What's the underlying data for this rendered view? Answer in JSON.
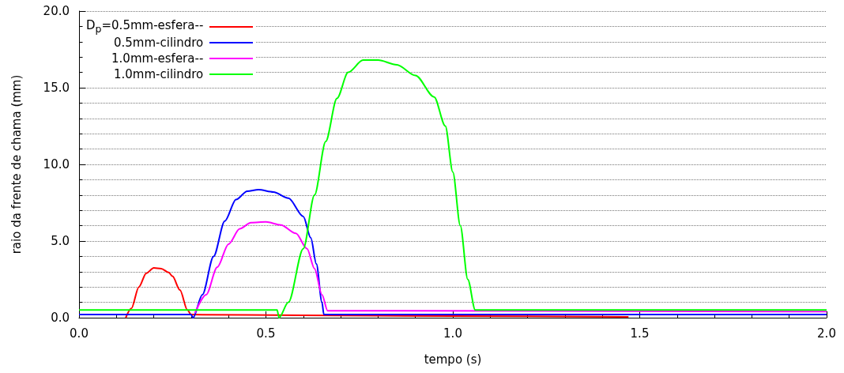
{
  "chart_data": {
    "type": "line",
    "xlabel": "tempo (s)",
    "ylabel": "raio da frente de chama (mm)",
    "xlim": [
      0,
      2
    ],
    "ylim": [
      0,
      20
    ],
    "xticks": [
      {
        "value": 0,
        "label": "0.0"
      },
      {
        "value": 0.5,
        "label": "0.5"
      },
      {
        "value": 1,
        "label": "1.0"
      },
      {
        "value": 1.5,
        "label": "1.5"
      },
      {
        "value": 2,
        "label": "2.0"
      }
    ],
    "yticks": [
      {
        "value": 0,
        "label": "0.0"
      },
      {
        "value": 5,
        "label": "5.0"
      },
      {
        "value": 10,
        "label": "10.0"
      },
      {
        "value": 15,
        "label": "15.0"
      },
      {
        "value": 20,
        "label": "20.0"
      }
    ],
    "grid": "y",
    "legend": "top left",
    "marker": "none",
    "line_style": "solid",
    "series": [
      {
        "name": "D$_{p}$=0.5mm-esfera--",
        "color": "#ff0000",
        "x": [
          0.125,
          0.14,
          0.16,
          0.18,
          0.2,
          0.22,
          0.24,
          0.25,
          0.27,
          0.29,
          0.3,
          0.6,
          1.0,
          1.47
        ],
        "values": [
          0.0,
          0.6,
          2.0,
          2.9,
          3.25,
          3.2,
          2.95,
          2.7,
          1.8,
          0.5,
          0.2,
          0.15,
          0.1,
          0.05
        ]
      },
      {
        "name": "0.5mm-cilindro",
        "color": "#0000ff",
        "x": [
          0,
          0.3,
          0.305,
          0.33,
          0.36,
          0.39,
          0.42,
          0.45,
          0.48,
          0.52,
          0.56,
          0.6,
          0.62,
          0.635,
          0.65,
          0.655,
          2.0
        ],
        "values": [
          0.2,
          0.2,
          0.0,
          1.5,
          4.0,
          6.3,
          7.7,
          8.25,
          8.35,
          8.2,
          7.8,
          6.6,
          5.2,
          3.5,
          1.0,
          0.2,
          0.2
        ]
      },
      {
        "name": "1.0mm-esfera--",
        "color": "#ff00ff",
        "x": [
          0.31,
          0.34,
          0.37,
          0.4,
          0.43,
          0.46,
          0.5,
          0.54,
          0.58,
          0.61,
          0.63,
          0.65,
          0.665,
          2.0
        ],
        "values": [
          0.3,
          1.5,
          3.3,
          4.8,
          5.8,
          6.2,
          6.25,
          6.05,
          5.5,
          4.5,
          3.2,
          1.5,
          0.45,
          0.4
        ]
      },
      {
        "name": "1.0mm-cilindro",
        "color": "#00ff00",
        "x": [
          0,
          0.53,
          0.535,
          0.56,
          0.6,
          0.63,
          0.66,
          0.69,
          0.72,
          0.76,
          0.8,
          0.85,
          0.9,
          0.95,
          0.98,
          1.0,
          1.02,
          1.04,
          1.06,
          2.0
        ],
        "values": [
          0.5,
          0.5,
          0.0,
          1.0,
          4.5,
          8.0,
          11.5,
          14.3,
          16.0,
          16.8,
          16.8,
          16.5,
          15.8,
          14.4,
          12.5,
          9.5,
          6.0,
          2.5,
          0.5,
          0.5
        ]
      }
    ]
  }
}
